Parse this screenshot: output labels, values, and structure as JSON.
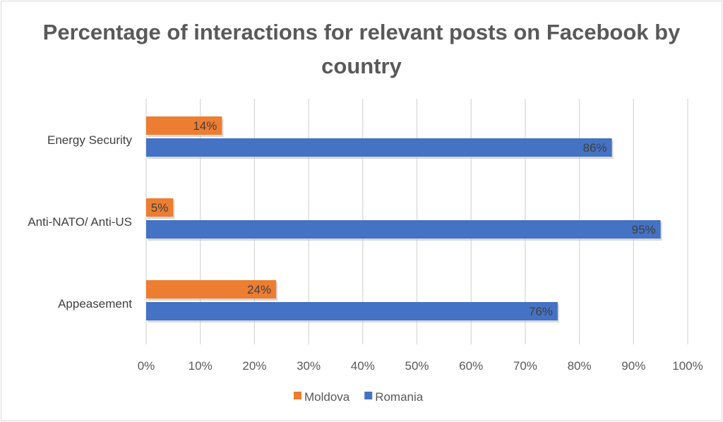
{
  "chart_data": {
    "type": "bar",
    "orientation": "horizontal",
    "title": "Percentage of interactions for relevant posts on Facebook by country",
    "categories": [
      "Energy Security",
      "Anti-NATO/ Anti-US",
      "Appeasement"
    ],
    "series": [
      {
        "name": "Moldova",
        "values": [
          14,
          5,
          24
        ],
        "labels": [
          "14%",
          "5%",
          "24%"
        ],
        "color": "#ed7d31"
      },
      {
        "name": "Romania",
        "values": [
          86,
          95,
          76
        ],
        "labels": [
          "86%",
          "95%",
          "76%"
        ],
        "color": "#4472c4"
      }
    ],
    "xlim": [
      0,
      100
    ],
    "x_ticks": [
      "0%",
      "10%",
      "20%",
      "30%",
      "40%",
      "50%",
      "60%",
      "70%",
      "80%",
      "90%",
      "100%"
    ],
    "grid": true,
    "legend_position": "bottom"
  }
}
